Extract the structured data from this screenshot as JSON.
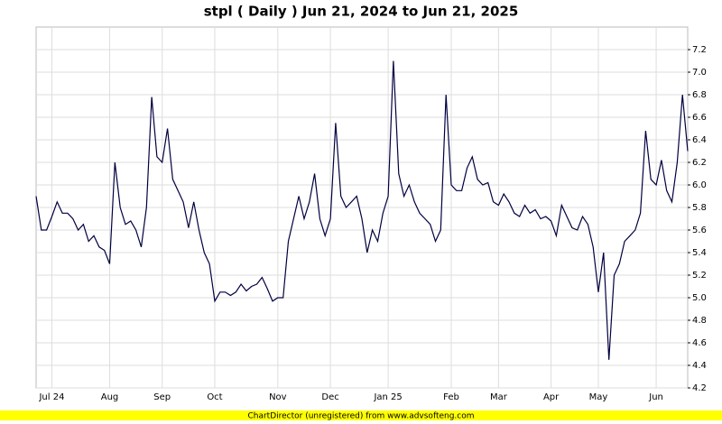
{
  "chart_data": {
    "type": "line",
    "title": "stpl ( Daily ) Jun 21, 2024 to Jun 21, 2025",
    "footer": "ChartDirector (unregistered) from www.advsofteng.com",
    "categories": [
      null,
      null,
      null,
      "Jul 24",
      null,
      null,
      null,
      null,
      null,
      null,
      null,
      null,
      null,
      null,
      "Aug",
      null,
      null,
      null,
      null,
      null,
      null,
      null,
      null,
      null,
      "Sep",
      null,
      null,
      null,
      null,
      null,
      null,
      null,
      null,
      null,
      "Oct",
      null,
      null,
      null,
      null,
      null,
      null,
      null,
      null,
      null,
      null,
      null,
      "Nov",
      null,
      null,
      null,
      null,
      null,
      null,
      null,
      null,
      null,
      "Dec",
      null,
      null,
      null,
      null,
      null,
      null,
      null,
      null,
      null,
      null,
      "Jan 25",
      null,
      null,
      null,
      null,
      null,
      null,
      null,
      null,
      null,
      null,
      null,
      "Feb",
      null,
      null,
      null,
      null,
      null,
      null,
      null,
      null,
      "Mar",
      null,
      null,
      null,
      null,
      null,
      null,
      null,
      null,
      null,
      "Apr",
      null,
      null,
      null,
      null,
      null,
      null,
      null,
      null,
      "May",
      null,
      null,
      null,
      null,
      null,
      null,
      null,
      null,
      null,
      null,
      "Jun",
      null,
      null,
      null,
      null,
      null,
      null
    ],
    "values": [
      5.9,
      5.6,
      5.6,
      5.72,
      5.85,
      5.75,
      5.75,
      5.7,
      5.6,
      5.65,
      5.5,
      5.55,
      5.45,
      5.42,
      5.3,
      6.2,
      5.8,
      5.65,
      5.68,
      5.6,
      5.45,
      5.8,
      6.78,
      6.25,
      6.2,
      6.5,
      6.05,
      5.95,
      5.85,
      5.62,
      5.85,
      5.6,
      5.4,
      5.3,
      4.97,
      5.05,
      5.05,
      5.02,
      5.05,
      5.12,
      5.06,
      5.1,
      5.12,
      5.18,
      5.08,
      4.97,
      5.0,
      5.0,
      5.5,
      5.7,
      5.9,
      5.7,
      5.85,
      6.1,
      5.7,
      5.55,
      5.7,
      6.55,
      5.9,
      5.8,
      5.85,
      5.9,
      5.7,
      5.4,
      5.6,
      5.5,
      5.75,
      5.9,
      7.1,
      6.1,
      5.9,
      6.0,
      5.85,
      5.75,
      5.7,
      5.65,
      5.5,
      5.6,
      6.8,
      6.0,
      5.95,
      5.95,
      6.15,
      6.25,
      6.05,
      6.0,
      6.02,
      5.85,
      5.82,
      5.92,
      5.85,
      5.75,
      5.72,
      5.82,
      5.75,
      5.78,
      5.7,
      5.72,
      5.68,
      5.55,
      5.82,
      5.72,
      5.62,
      5.6,
      5.72,
      5.65,
      5.45,
      5.05,
      5.4,
      4.45,
      5.2,
      5.3,
      5.5,
      5.55,
      5.6,
      5.75,
      6.48,
      6.05,
      6.0,
      6.22,
      5.95,
      5.85,
      6.2,
      6.8,
      6.3
    ],
    "color": "#000040",
    "ylim": [
      4.2,
      7.4
    ],
    "yticks": [
      4.2,
      4.4,
      4.6,
      4.8,
      {
        "value": 5,
        "label": "5.0"
      },
      5.2,
      5.4,
      5.6,
      5.8,
      {
        "value": 6,
        "label": "6.0"
      },
      6.2,
      6.4,
      6.6,
      6.8,
      {
        "value": 7,
        "label": "7.0"
      },
      7.2
    ],
    "grid": true
  }
}
